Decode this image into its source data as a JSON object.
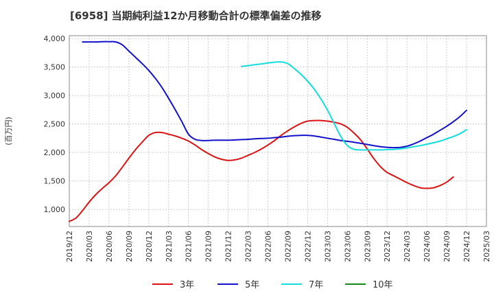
{
  "chart_data": {
    "type": "line",
    "title": "[6958]  当期純利益12か月移動合計の標準偏差の推移",
    "ylabel": "(百万円)",
    "xlabel": "",
    "ylim": [
      700,
      4050
    ],
    "yticks": [
      1000,
      1500,
      2000,
      2500,
      3000,
      3500,
      4000
    ],
    "ytick_labels": [
      "1,000",
      "1,500",
      "2,000",
      "2,500",
      "3,000",
      "3,500",
      "4,000"
    ],
    "xticks": [
      "2019/12",
      "2020/03",
      "2020/06",
      "2020/09",
      "2020/12",
      "2021/03",
      "2021/06",
      "2021/09",
      "2021/12",
      "2022/03",
      "2022/06",
      "2022/09",
      "2022/12",
      "2023/03",
      "2023/06",
      "2023/09",
      "2023/12",
      "2024/03",
      "2024/06",
      "2024/09",
      "2024/12",
      "2025/03"
    ],
    "grid": true,
    "legend_position": "bottom",
    "series": [
      {
        "name": "3年",
        "color": "#dd1111",
        "start": "2019/12",
        "values": [
          790,
          850,
          980,
          1130,
          1260,
          1370,
          1470,
          1590,
          1740,
          1900,
          2050,
          2180,
          2300,
          2350,
          2350,
          2320,
          2290,
          2250,
          2200,
          2130,
          2050,
          1980,
          1920,
          1880,
          1860,
          1870,
          1900,
          1950,
          2000,
          2060,
          2130,
          2210,
          2300,
          2380,
          2450,
          2510,
          2550,
          2560,
          2560,
          2550,
          2530,
          2500,
          2440,
          2340,
          2220,
          2060,
          1890,
          1750,
          1650,
          1590,
          1530,
          1470,
          1420,
          1380,
          1370,
          1380,
          1420,
          1480,
          1570
        ]
      },
      {
        "name": "5年",
        "color": "#1111cc",
        "start": "2020/02",
        "values": [
          3940,
          3940,
          3940,
          3945,
          3945,
          3940,
          3890,
          3780,
          3670,
          3560,
          3440,
          3300,
          3140,
          2950,
          2750,
          2540,
          2320,
          2230,
          2210,
          2210,
          2215,
          2215,
          2215,
          2220,
          2225,
          2230,
          2240,
          2245,
          2250,
          2260,
          2270,
          2285,
          2295,
          2300,
          2300,
          2290,
          2270,
          2250,
          2230,
          2210,
          2195,
          2180,
          2160,
          2140,
          2120,
          2100,
          2090,
          2085,
          2090,
          2110,
          2150,
          2200,
          2260,
          2320,
          2390,
          2460,
          2540,
          2630,
          2740
        ]
      },
      {
        "name": "7年",
        "color": "#11dddd",
        "start": "2022/02",
        "values": [
          3510,
          3525,
          3540,
          3555,
          3570,
          3585,
          3590,
          3560,
          3470,
          3370,
          3250,
          3110,
          2940,
          2740,
          2510,
          2280,
          2120,
          2055,
          2045,
          2045,
          2045,
          2045,
          2050,
          2055,
          2065,
          2080,
          2100,
          2120,
          2145,
          2170,
          2200,
          2240,
          2280,
          2330,
          2400
        ]
      },
      {
        "name": "10年",
        "color": "#118811",
        "start": "2024/12",
        "values": []
      }
    ]
  }
}
